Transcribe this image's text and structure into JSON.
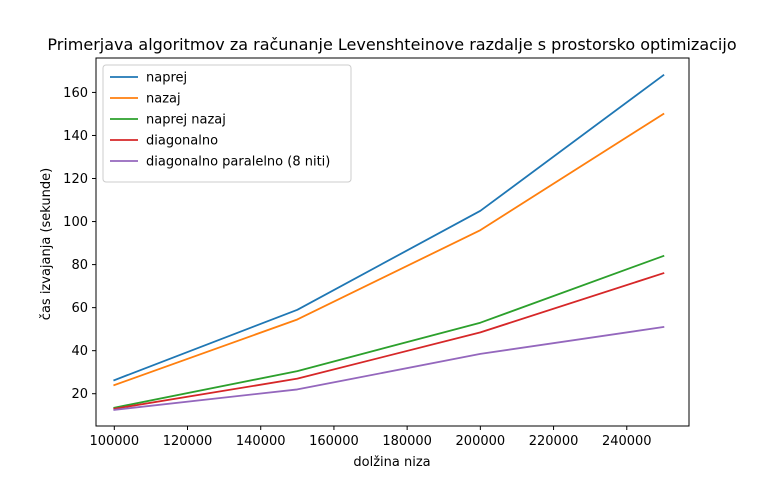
{
  "chart_data": {
    "type": "line",
    "title": "Primerjava algoritmov za računanje Levenshteinove razdalje s prostorsko optimizacijo",
    "xlabel": "dolžina niza",
    "ylabel": "čas izvajanja (sekunde)",
    "x": [
      100000,
      150000,
      200000,
      250000
    ],
    "xlim": [
      95000,
      257000
    ],
    "ylim": [
      5,
      176
    ],
    "xticks": [
      100000,
      120000,
      140000,
      160000,
      180000,
      200000,
      220000,
      240000
    ],
    "yticks": [
      20,
      40,
      60,
      80,
      100,
      120,
      140,
      160
    ],
    "grid": false,
    "legend_position": "top-left",
    "series": [
      {
        "name": "naprej",
        "color": "#1f77b4",
        "values": [
          26.3,
          59.0,
          105.0,
          168.0
        ]
      },
      {
        "name": "nazaj",
        "color": "#ff7f0e",
        "values": [
          24.0,
          54.5,
          96.0,
          150.0
        ]
      },
      {
        "name": "naprej nazaj",
        "color": "#2ca02c",
        "values": [
          13.5,
          30.5,
          53.0,
          84.0
        ]
      },
      {
        "name": "diagonalno",
        "color": "#d62728",
        "values": [
          13.0,
          27.0,
          48.5,
          76.0
        ]
      },
      {
        "name": "diagonalno paralelno (8 niti)",
        "color": "#9467bd",
        "values": [
          12.5,
          22.0,
          38.5,
          51.0
        ]
      }
    ]
  }
}
